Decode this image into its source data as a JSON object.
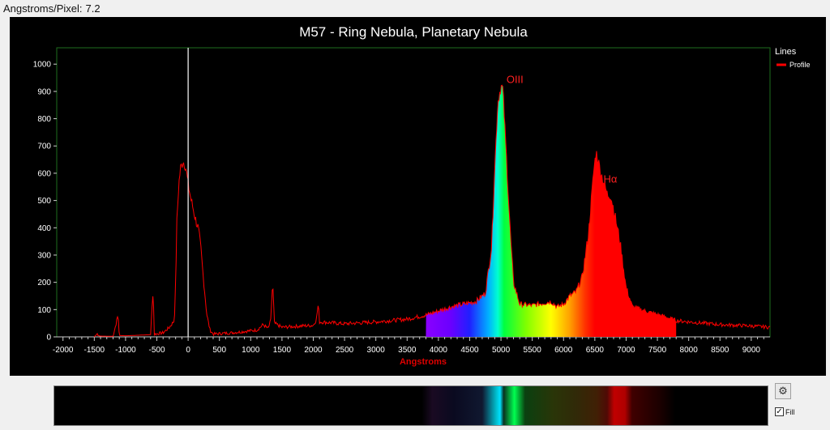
{
  "header": {
    "label": "Angstroms/Pixel:",
    "value": "7.2"
  },
  "chart_data": {
    "type": "area",
    "title": "M57 - Ring Nebula, Planetary Nebula",
    "xlabel": "Angstroms",
    "ylabel": "",
    "xlim": [
      -2100,
      9300
    ],
    "ylim": [
      0,
      1060
    ],
    "xticks": [
      -2000,
      -1500,
      -1000,
      -500,
      0,
      500,
      1000,
      1500,
      2000,
      2500,
      3000,
      3500,
      4000,
      4500,
      5000,
      5500,
      6000,
      6500,
      7000,
      7500,
      8000,
      8500,
      9000
    ],
    "yticks": [
      0,
      100,
      200,
      300,
      400,
      500,
      600,
      700,
      800,
      900,
      1000
    ],
    "legend": {
      "title": "Lines",
      "position": "top-right",
      "entries": [
        {
          "name": "Profile",
          "color": "#ff0000"
        }
      ]
    },
    "zero_marker_x": 0,
    "annotations": [
      {
        "text": "OIII",
        "x": 5010,
        "y": 925
      },
      {
        "text": "Hα",
        "x": 6560,
        "y": 560
      }
    ],
    "fill_range": [
      3800,
      7800
    ],
    "series": [
      {
        "name": "Profile",
        "color": "#ff0000",
        "points": [
          [
            -1500,
            0
          ],
          [
            -1450,
            12
          ],
          [
            -1420,
            3
          ],
          [
            -1200,
            2
          ],
          [
            -1120,
            80
          ],
          [
            -1100,
            5
          ],
          [
            -1000,
            4
          ],
          [
            -800,
            6
          ],
          [
            -600,
            8
          ],
          [
            -560,
            175
          ],
          [
            -540,
            10
          ],
          [
            -400,
            15
          ],
          [
            -300,
            35
          ],
          [
            -220,
            60
          ],
          [
            -200,
            200
          ],
          [
            -180,
            420
          ],
          [
            -150,
            560
          ],
          [
            -120,
            620
          ],
          [
            -80,
            645
          ],
          [
            -40,
            625
          ],
          [
            0,
            560
          ],
          [
            40,
            510
          ],
          [
            80,
            470
          ],
          [
            120,
            430
          ],
          [
            160,
            400
          ],
          [
            200,
            330
          ],
          [
            250,
            200
          ],
          [
            300,
            80
          ],
          [
            350,
            25
          ],
          [
            400,
            10
          ],
          [
            500,
            12
          ],
          [
            700,
            15
          ],
          [
            900,
            20
          ],
          [
            1100,
            25
          ],
          [
            1200,
            45
          ],
          [
            1280,
            30
          ],
          [
            1320,
            60
          ],
          [
            1350,
            200
          ],
          [
            1380,
            50
          ],
          [
            1500,
            35
          ],
          [
            1800,
            40
          ],
          [
            2000,
            42
          ],
          [
            2050,
            65
          ],
          [
            2080,
            120
          ],
          [
            2100,
            55
          ],
          [
            2500,
            48
          ],
          [
            3000,
            55
          ],
          [
            3500,
            65
          ],
          [
            3800,
            80
          ],
          [
            4000,
            95
          ],
          [
            4200,
            110
          ],
          [
            4400,
            120
          ],
          [
            4600,
            130
          ],
          [
            4750,
            160
          ],
          [
            4850,
            330
          ],
          [
            4900,
            620
          ],
          [
            4950,
            860
          ],
          [
            5000,
            920
          ],
          [
            5030,
            910
          ],
          [
            5060,
            780
          ],
          [
            5100,
            600
          ],
          [
            5150,
            380
          ],
          [
            5200,
            200
          ],
          [
            5300,
            120
          ],
          [
            5500,
            115
          ],
          [
            5700,
            125
          ],
          [
            5800,
            130
          ],
          [
            5900,
            110
          ],
          [
            6000,
            120
          ],
          [
            6100,
            150
          ],
          [
            6200,
            165
          ],
          [
            6300,
            220
          ],
          [
            6400,
            380
          ],
          [
            6480,
            600
          ],
          [
            6520,
            680
          ],
          [
            6560,
            640
          ],
          [
            6600,
            600
          ],
          [
            6700,
            520
          ],
          [
            6750,
            520
          ],
          [
            6800,
            470
          ],
          [
            6900,
            350
          ],
          [
            7000,
            180
          ],
          [
            7100,
            110
          ],
          [
            7300,
            95
          ],
          [
            7600,
            75
          ],
          [
            7800,
            60
          ],
          [
            8000,
            55
          ],
          [
            8500,
            45
          ],
          [
            9000,
            40
          ],
          [
            9300,
            35
          ]
        ]
      }
    ]
  },
  "controls": {
    "fill_label": "Fill",
    "fill_checked": true,
    "settings_icon": "gear-icon",
    "check_mark": "✓",
    "gear_glyph": "⚙"
  },
  "colors": {
    "profile": "#ff0000",
    "axis_label": "#e00000",
    "plot_border": "#1e6e1e",
    "marker": "#ffffff"
  }
}
